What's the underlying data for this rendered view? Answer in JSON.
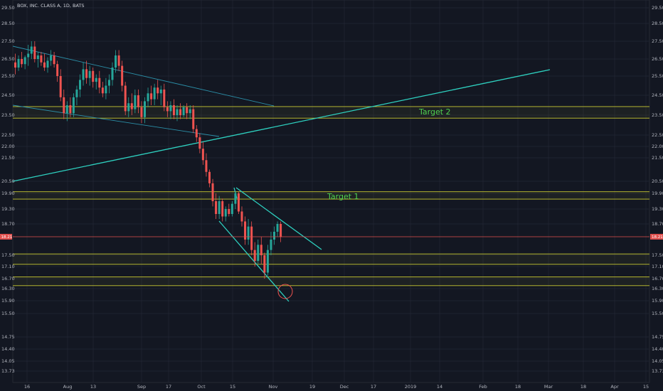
{
  "header": {
    "title": "BOX, INC. CLASS A, 1D, BATS"
  },
  "colors": {
    "background": "#131722",
    "grid": "#232836",
    "up": "#26a69a",
    "down": "#ef5350",
    "zone_border": "#c9c931",
    "trendline": "#2ed1c0",
    "channel": "#2b8fa8",
    "target_text": "#4fd14f",
    "circle": "#ef5350"
  },
  "chart_data": {
    "type": "candlestick",
    "title": "BOX, INC. CLASS A, 1D, BATS",
    "y_ticks": [
      "29.50",
      "28.50",
      "27.50",
      "26.50",
      "25.50",
      "24.50",
      "23.50",
      "22.50",
      "22.00",
      "21.50",
      "20.50",
      "19.90",
      "19.30",
      "18.70",
      "17.50",
      "17.10",
      "16.70",
      "16.30",
      "15.90",
      "15.50",
      "14.75",
      "14.40",
      "14.05",
      "13.73"
    ],
    "x_ticks": [
      "16",
      "Aug",
      "13",
      "Sep",
      "17",
      "Oct",
      "15",
      "Nov",
      "19",
      "Dec",
      "17",
      "2019",
      "14",
      "Feb",
      "18",
      "Mar",
      "18",
      "Apr",
      "15"
    ],
    "current_price": "18.21",
    "annotations": [
      {
        "text": "Target 1",
        "zone": [
          19.68,
          19.98
        ]
      },
      {
        "text": "Target 2",
        "zone": [
          23.35,
          23.93
        ]
      }
    ],
    "zones": [
      [
        17.18,
        17.55
      ],
      [
        16.42,
        16.76
      ]
    ],
    "candles": [
      {
        "date": "Jul 16",
        "o": 26.3,
        "h": 26.8,
        "l": 25.6,
        "c": 26.0
      },
      {
        "date": "Jul 17",
        "o": 26.0,
        "h": 26.7,
        "l": 25.8,
        "c": 26.5
      },
      {
        "date": "Jul 18",
        "o": 26.5,
        "h": 26.9,
        "l": 26.0,
        "c": 26.2
      },
      {
        "date": "Jul 19",
        "o": 26.2,
        "h": 26.7,
        "l": 25.9,
        "c": 26.6
      },
      {
        "date": "Jul 20",
        "o": 26.6,
        "h": 27.3,
        "l": 26.1,
        "c": 26.8
      },
      {
        "date": "Jul 23",
        "o": 26.8,
        "h": 27.5,
        "l": 26.5,
        "c": 27.2
      },
      {
        "date": "Jul 24",
        "o": 27.2,
        "h": 27.5,
        "l": 26.3,
        "c": 26.5
      },
      {
        "date": "Jul 25",
        "o": 26.5,
        "h": 26.9,
        "l": 26.0,
        "c": 26.7
      },
      {
        "date": "Jul 26",
        "o": 26.7,
        "h": 26.9,
        "l": 26.1,
        "c": 26.3
      },
      {
        "date": "Jul 27",
        "o": 26.3,
        "h": 26.8,
        "l": 25.8,
        "c": 26.0
      },
      {
        "date": "Jul 30",
        "o": 26.0,
        "h": 26.6,
        "l": 25.7,
        "c": 26.4
      },
      {
        "date": "Jul 31",
        "o": 26.4,
        "h": 27.0,
        "l": 26.1,
        "c": 26.7
      },
      {
        "date": "Aug 1",
        "o": 26.7,
        "h": 26.9,
        "l": 26.0,
        "c": 26.2
      },
      {
        "date": "Aug 2",
        "o": 26.2,
        "h": 26.4,
        "l": 25.2,
        "c": 25.5
      },
      {
        "date": "Aug 3",
        "o": 25.5,
        "h": 25.9,
        "l": 24.2,
        "c": 24.4
      },
      {
        "date": "Aug 6",
        "o": 24.4,
        "h": 24.8,
        "l": 23.3,
        "c": 23.6
      },
      {
        "date": "Aug 7",
        "o": 23.6,
        "h": 24.2,
        "l": 23.2,
        "c": 24.0
      },
      {
        "date": "Aug 8",
        "o": 24.0,
        "h": 24.4,
        "l": 23.4,
        "c": 23.6
      },
      {
        "date": "Aug 9",
        "o": 23.6,
        "h": 24.6,
        "l": 23.4,
        "c": 24.4
      },
      {
        "date": "Aug 10",
        "o": 24.4,
        "h": 25.0,
        "l": 24.0,
        "c": 24.8
      },
      {
        "date": "Aug 13",
        "o": 24.8,
        "h": 25.6,
        "l": 24.4,
        "c": 25.3
      },
      {
        "date": "Aug 14",
        "o": 25.3,
        "h": 26.3,
        "l": 25.0,
        "c": 25.9
      },
      {
        "date": "Aug 15",
        "o": 25.9,
        "h": 26.4,
        "l": 25.1,
        "c": 25.4
      },
      {
        "date": "Aug 16",
        "o": 25.4,
        "h": 26.1,
        "l": 25.0,
        "c": 25.8
      },
      {
        "date": "Aug 17",
        "o": 25.8,
        "h": 26.0,
        "l": 24.9,
        "c": 25.2
      },
      {
        "date": "Aug 20",
        "o": 25.2,
        "h": 25.6,
        "l": 24.8,
        "c": 25.4
      },
      {
        "date": "Aug 21",
        "o": 25.4,
        "h": 25.8,
        "l": 24.6,
        "c": 24.9
      },
      {
        "date": "Aug 22",
        "o": 24.9,
        "h": 25.2,
        "l": 24.4,
        "c": 24.6
      },
      {
        "date": "Aug 23",
        "o": 24.6,
        "h": 25.4,
        "l": 24.3,
        "c": 25.0
      },
      {
        "date": "Aug 24",
        "o": 25.0,
        "h": 25.6,
        "l": 24.6,
        "c": 25.3
      },
      {
        "date": "Aug 27",
        "o": 25.3,
        "h": 26.3,
        "l": 25.0,
        "c": 26.0
      },
      {
        "date": "Aug 28",
        "o": 26.0,
        "h": 27.0,
        "l": 25.7,
        "c": 26.7
      },
      {
        "date": "Aug 29",
        "o": 26.7,
        "h": 27.0,
        "l": 25.8,
        "c": 26.1
      },
      {
        "date": "Aug 30",
        "o": 26.1,
        "h": 26.4,
        "l": 24.7,
        "c": 25.0
      },
      {
        "date": "Aug 31",
        "o": 25.0,
        "h": 25.2,
        "l": 23.5,
        "c": 23.7
      },
      {
        "date": "Sep 4",
        "o": 23.7,
        "h": 24.4,
        "l": 23.4,
        "c": 24.1
      },
      {
        "date": "Sep 5",
        "o": 24.1,
        "h": 24.6,
        "l": 23.5,
        "c": 23.8
      },
      {
        "date": "Sep 6",
        "o": 23.8,
        "h": 24.8,
        "l": 23.6,
        "c": 24.5
      },
      {
        "date": "Sep 7",
        "o": 24.5,
        "h": 24.8,
        "l": 23.6,
        "c": 23.9
      },
      {
        "date": "Sep 10",
        "o": 23.9,
        "h": 24.2,
        "l": 23.1,
        "c": 23.4
      },
      {
        "date": "Sep 11",
        "o": 23.4,
        "h": 24.4,
        "l": 23.1,
        "c": 24.2
      },
      {
        "date": "Sep 12",
        "o": 24.2,
        "h": 24.9,
        "l": 23.9,
        "c": 24.6
      },
      {
        "date": "Sep 13",
        "o": 24.6,
        "h": 25.0,
        "l": 24.0,
        "c": 24.3
      },
      {
        "date": "Sep 14",
        "o": 24.3,
        "h": 25.1,
        "l": 24.0,
        "c": 24.9
      },
      {
        "date": "Sep 17",
        "o": 24.9,
        "h": 25.3,
        "l": 24.3,
        "c": 24.6
      },
      {
        "date": "Sep 18",
        "o": 24.6,
        "h": 25.0,
        "l": 24.0,
        "c": 24.8
      },
      {
        "date": "Sep 19",
        "o": 24.8,
        "h": 25.1,
        "l": 23.7,
        "c": 23.9
      },
      {
        "date": "Sep 20",
        "o": 23.9,
        "h": 24.2,
        "l": 23.4,
        "c": 23.7
      },
      {
        "date": "Sep 21",
        "o": 23.7,
        "h": 24.2,
        "l": 23.3,
        "c": 24.0
      },
      {
        "date": "Sep 24",
        "o": 24.0,
        "h": 24.3,
        "l": 23.3,
        "c": 23.5
      },
      {
        "date": "Sep 25",
        "o": 23.5,
        "h": 24.0,
        "l": 23.2,
        "c": 23.8
      },
      {
        "date": "Sep 26",
        "o": 23.8,
        "h": 24.1,
        "l": 23.3,
        "c": 23.5
      },
      {
        "date": "Sep 27",
        "o": 23.5,
        "h": 24.0,
        "l": 23.4,
        "c": 23.9
      },
      {
        "date": "Sep 28",
        "o": 23.9,
        "h": 24.1,
        "l": 23.3,
        "c": 23.6
      },
      {
        "date": "Oct 1",
        "o": 23.6,
        "h": 24.0,
        "l": 23.3,
        "c": 23.8
      },
      {
        "date": "Oct 2",
        "o": 23.8,
        "h": 24.0,
        "l": 22.6,
        "c": 22.8
      },
      {
        "date": "Oct 3",
        "o": 22.8,
        "h": 23.0,
        "l": 22.2,
        "c": 22.4
      },
      {
        "date": "Oct 4",
        "o": 22.4,
        "h": 22.6,
        "l": 21.7,
        "c": 21.9
      },
      {
        "date": "Oct 5",
        "o": 21.9,
        "h": 22.2,
        "l": 21.2,
        "c": 21.4
      },
      {
        "date": "Oct 8",
        "o": 21.4,
        "h": 21.7,
        "l": 20.7,
        "c": 20.9
      },
      {
        "date": "Oct 9",
        "o": 20.9,
        "h": 21.0,
        "l": 20.2,
        "c": 20.4
      },
      {
        "date": "Oct 10",
        "o": 20.4,
        "h": 20.6,
        "l": 19.4,
        "c": 19.6
      },
      {
        "date": "Oct 11",
        "o": 19.6,
        "h": 19.9,
        "l": 18.9,
        "c": 19.1
      },
      {
        "date": "Oct 12",
        "o": 19.1,
        "h": 19.8,
        "l": 18.9,
        "c": 19.6
      },
      {
        "date": "Oct 15",
        "o": 19.6,
        "h": 19.7,
        "l": 18.8,
        "c": 19.0
      },
      {
        "date": "Oct 16",
        "o": 19.0,
        "h": 19.4,
        "l": 18.8,
        "c": 19.3
      },
      {
        "date": "Oct 17",
        "o": 19.3,
        "h": 19.5,
        "l": 19.0,
        "c": 19.1
      },
      {
        "date": "Oct 18",
        "o": 19.1,
        "h": 19.6,
        "l": 19.0,
        "c": 19.5
      },
      {
        "date": "Oct 19",
        "o": 19.5,
        "h": 20.0,
        "l": 19.3,
        "c": 19.9
      },
      {
        "date": "Oct 22",
        "o": 19.9,
        "h": 20.0,
        "l": 19.1,
        "c": 19.2
      },
      {
        "date": "Oct 23",
        "o": 19.2,
        "h": 19.4,
        "l": 18.6,
        "c": 18.8
      },
      {
        "date": "Oct 24",
        "o": 18.8,
        "h": 19.0,
        "l": 17.9,
        "c": 18.1
      },
      {
        "date": "Oct 25",
        "o": 18.1,
        "h": 18.9,
        "l": 17.9,
        "c": 18.6
      },
      {
        "date": "Oct 26",
        "o": 18.6,
        "h": 18.8,
        "l": 17.5,
        "c": 17.7
      },
      {
        "date": "Oct 29",
        "o": 17.7,
        "h": 18.0,
        "l": 17.1,
        "c": 17.3
      },
      {
        "date": "Oct 30",
        "o": 17.3,
        "h": 18.1,
        "l": 17.2,
        "c": 17.9
      },
      {
        "date": "Oct 31",
        "o": 17.9,
        "h": 18.2,
        "l": 17.2,
        "c": 17.5
      },
      {
        "date": "Nov 1",
        "o": 17.5,
        "h": 17.6,
        "l": 16.7,
        "c": 16.9
      },
      {
        "date": "Nov 2",
        "o": 16.9,
        "h": 17.9,
        "l": 16.8,
        "c": 17.7
      },
      {
        "date": "Nov 5",
        "o": 17.7,
        "h": 18.4,
        "l": 17.5,
        "c": 18.1
      },
      {
        "date": "Nov 6",
        "o": 18.1,
        "h": 18.6,
        "l": 17.9,
        "c": 18.4
      },
      {
        "date": "Nov 7",
        "o": 18.4,
        "h": 18.8,
        "l": 18.2,
        "c": 18.7
      },
      {
        "date": "Nov 8",
        "o": 18.7,
        "h": 18.8,
        "l": 18.0,
        "c": 18.2
      }
    ]
  }
}
